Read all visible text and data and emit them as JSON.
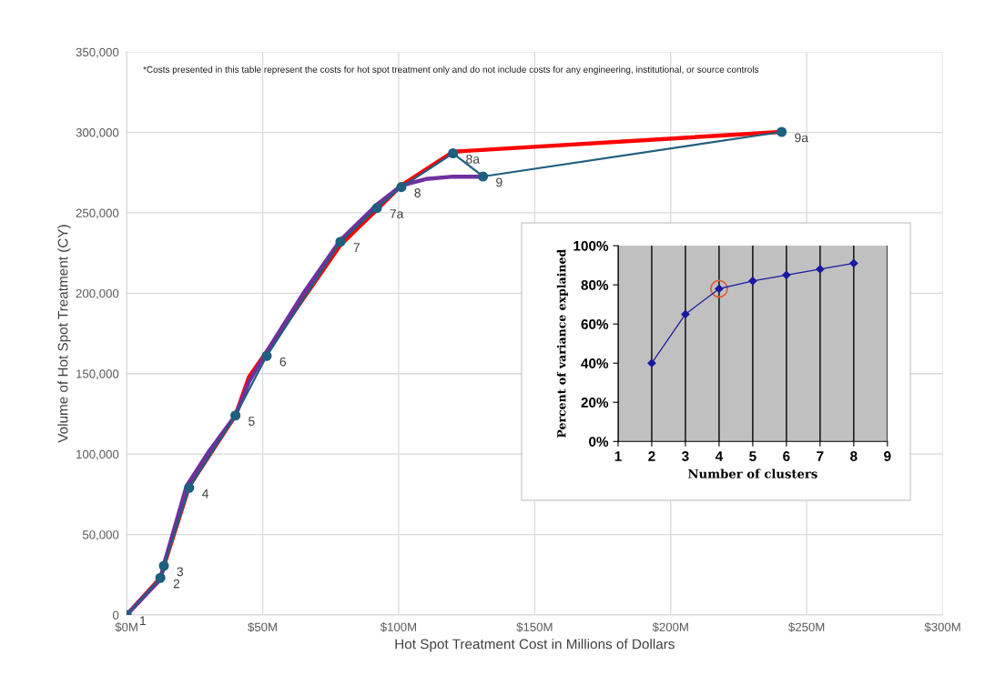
{
  "chart_data": [
    {
      "type": "line",
      "xlabel": "Hot Spot Treatment Cost in Millions of Dollars",
      "ylabel": "Volume of Hot Spot Treatment (CY)",
      "xlim": [
        0,
        300
      ],
      "xticks": [
        {
          "value": 0,
          "label": "$0M"
        },
        {
          "value": 50,
          "label": "$50M"
        },
        {
          "value": 100,
          "label": "$100M"
        },
        {
          "value": 150,
          "label": "$150M"
        },
        {
          "value": 200,
          "label": "$200M"
        },
        {
          "value": 250,
          "label": "$250M"
        },
        {
          "value": 300,
          "label": "$300M"
        }
      ],
      "ylim": [
        0,
        350000
      ],
      "yticks": [
        {
          "value": 0,
          "label": "0"
        },
        {
          "value": 50000,
          "label": "50,000"
        },
        {
          "value": 100000,
          "label": "100,000"
        },
        {
          "value": 150000,
          "label": "150,000"
        },
        {
          "value": 200000,
          "label": "200,000"
        },
        {
          "value": 250000,
          "label": "250,000"
        },
        {
          "value": 300000,
          "label": "300,000"
        },
        {
          "value": 350000,
          "label": "350,000"
        }
      ],
      "grid": true,
      "series": [
        {
          "color": "#1f5f7f",
          "marker": "circle",
          "x": [
            0,
            12.4,
            13.7,
            23,
            40,
            51.5,
            78.6,
            92,
            101,
            120,
            131,
            240.8
          ],
          "values": [
            0,
            23000,
            30500,
            79000,
            124000,
            161000,
            232000,
            253000,
            266000,
            287000,
            272600,
            300300
          ]
        },
        {
          "color": "#ff0000",
          "marker": "none",
          "x": [
            0,
            12.4,
            14,
            23,
            40,
            45,
            52,
            78.6,
            92,
            101,
            120,
            240.8
          ],
          "values": [
            0,
            23000,
            32000,
            80000,
            124000,
            148000,
            165000,
            230000,
            252000,
            267000,
            288000,
            300300
          ]
        },
        {
          "color": "#7030a0",
          "marker": "none",
          "x": [
            0,
            12.4,
            14,
            22,
            30,
            40,
            45,
            52,
            65,
            78.6,
            92,
            101,
            110,
            120,
            131
          ],
          "values": [
            0,
            22000,
            33000,
            80000,
            101000,
            124000,
            145000,
            165000,
            200000,
            233000,
            255000,
            267000,
            271000,
            272500,
            272500
          ]
        }
      ],
      "annotations": [
        "*Costs presented in this table represent the costs for hot spot treatment only and do not include costs for any engineering, institutional, or source controls",
        {
          "text": "1",
          "x": 0,
          "y": 0
        },
        {
          "text": "2",
          "x": 12.4,
          "y": 23000
        },
        {
          "text": "3",
          "x": 13.7,
          "y": 30500
        },
        {
          "text": "4",
          "x": 23,
          "y": 79000
        },
        {
          "text": "5",
          "x": 40,
          "y": 124000
        },
        {
          "text": "6",
          "x": 51.5,
          "y": 161000
        },
        {
          "text": "7",
          "x": 78.6,
          "y": 232000
        },
        {
          "text": "7a",
          "x": 92,
          "y": 253000
        },
        {
          "text": "8",
          "x": 101,
          "y": 266000
        },
        {
          "text": "8a",
          "x": 120,
          "y": 287000
        },
        {
          "text": "9",
          "x": 131,
          "y": 272600
        },
        {
          "text": "9a",
          "x": 240.8,
          "y": 300300
        }
      ]
    },
    {
      "type": "line",
      "xlabel": "Number of clusters",
      "ylabel": "Percent of variance explained",
      "xlim": [
        1,
        9
      ],
      "xticks": [
        1,
        2,
        3,
        4,
        5,
        6,
        7,
        8,
        9
      ],
      "ylim": [
        0,
        100
      ],
      "yticks": [
        {
          "value": 0,
          "label": "0%"
        },
        {
          "value": 20,
          "label": "20%"
        },
        {
          "value": 40,
          "label": "40%"
        },
        {
          "value": 60,
          "label": "60%"
        },
        {
          "value": 80,
          "label": "80%"
        },
        {
          "value": 100,
          "label": "100%"
        }
      ],
      "grid": "x",
      "series": [
        {
          "color": "#1a1aa0",
          "marker": "diamond",
          "x": [
            2,
            3,
            4,
            5,
            6,
            7,
            8
          ],
          "values": [
            40,
            65,
            78,
            82,
            85,
            88,
            91
          ]
        },
        {
          "type": "scatter",
          "color": "#e06040",
          "marker": "circle",
          "x": [
            4
          ],
          "values": [
            78
          ]
        }
      ]
    }
  ]
}
